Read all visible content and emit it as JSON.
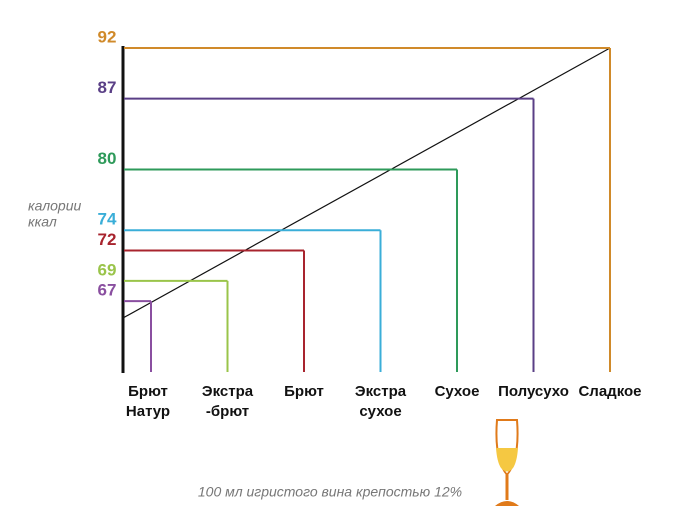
{
  "chart_data": {
    "type": "calorie-steps",
    "y_label": [
      "калории",
      "ккал"
    ],
    "categories": [
      [
        "Брют",
        "Натур"
      ],
      [
        "Экстра",
        "-брют"
      ],
      [
        "Брют"
      ],
      [
        "Экстра",
        "сухое"
      ],
      [
        "Сухое"
      ],
      [
        "Полусухо"
      ],
      [
        "Сладкое"
      ]
    ],
    "values": [
      67,
      69,
      72,
      74,
      80,
      87,
      92
    ],
    "colors": [
      "#8a4fa0",
      "#9ac44a",
      "#a8242e",
      "#3aaed8",
      "#2e9a5a",
      "#5a3f86",
      "#d08a2a"
    ],
    "ylim": [
      60,
      92
    ],
    "footnote": "100 мл игристого вина крепостью 12%"
  }
}
